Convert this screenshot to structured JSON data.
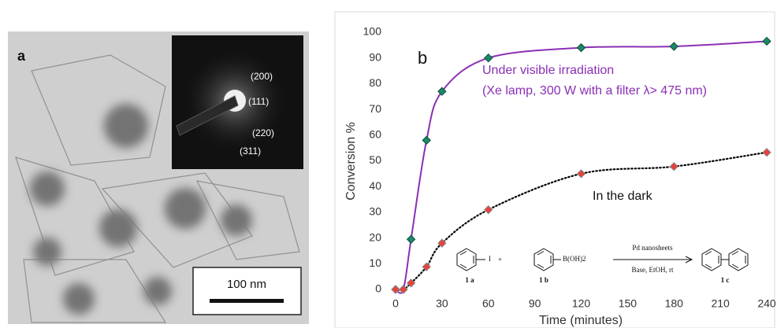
{
  "image_panel": {
    "label": "a",
    "diffraction_rings": [
      "(200)",
      "(111)",
      "(220)",
      "(311)"
    ],
    "scale_bar": "100 nm"
  },
  "chart_data": {
    "type": "line",
    "panel_label": "b",
    "xlabel": "Time (minutes)",
    "ylabel": "Conversion %",
    "x": [
      0,
      5,
      10,
      20,
      30,
      60,
      120,
      180,
      240
    ],
    "series": [
      {
        "name": "Under visible irradiation",
        "color": "#8b2fb5",
        "marker_color": "#1b8a66",
        "linestyle": "solid",
        "values": [
          0,
          0,
          19.5,
          58,
          77,
          90,
          94,
          94.5,
          96.5
        ]
      },
      {
        "name": "In the dark",
        "color": "#000000",
        "marker_color": "#e8413c",
        "linestyle": "dotted",
        "values": [
          0,
          0,
          2.5,
          8.8,
          18,
          31,
          45,
          47.8,
          53.3
        ]
      }
    ],
    "annotations": [
      "(Xe lamp, 300 W with a filter λ> 475 nm)"
    ],
    "xlim": [
      0,
      240
    ],
    "xticks": [
      0,
      30,
      60,
      90,
      120,
      150,
      180,
      210,
      240
    ],
    "ylim": [
      0,
      100
    ],
    "yticks": [
      0,
      10,
      20,
      30,
      40,
      50,
      60,
      70,
      80,
      90,
      100
    ],
    "reaction": {
      "reactant_1": "1 a",
      "reactant_2": "1 b",
      "product": "1 c",
      "substituent_1": "I",
      "substituent_2": "B(OH)2",
      "plus": "+",
      "catalyst": "Pd nanosheets",
      "conditions": "Base, EtOH, rt"
    }
  }
}
